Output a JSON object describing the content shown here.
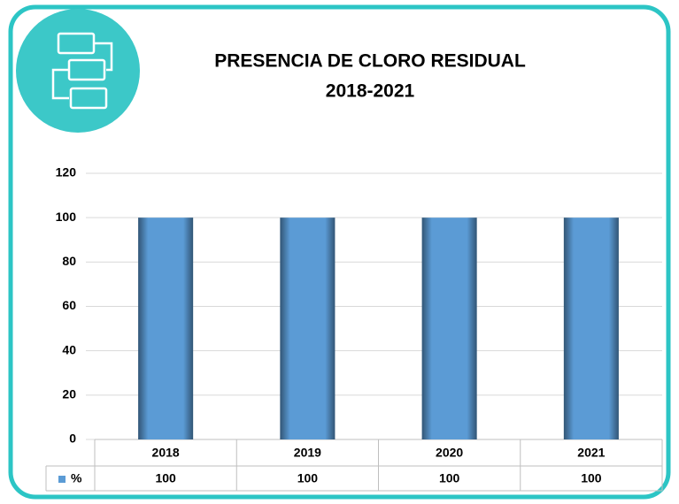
{
  "chart_data": {
    "type": "bar",
    "title": "PRESENCIA DE CLORO RESIDUAL",
    "subtitle": "2018-2021",
    "categories": [
      "2018",
      "2019",
      "2020",
      "2021"
    ],
    "series": [
      {
        "name": "%",
        "color": "#5b9bd5",
        "values": [
          100,
          100,
          100,
          100
        ]
      }
    ],
    "ylim": [
      0,
      120
    ],
    "yticks": [
      0,
      20,
      40,
      60,
      80,
      100,
      120
    ],
    "grid": true
  }
}
